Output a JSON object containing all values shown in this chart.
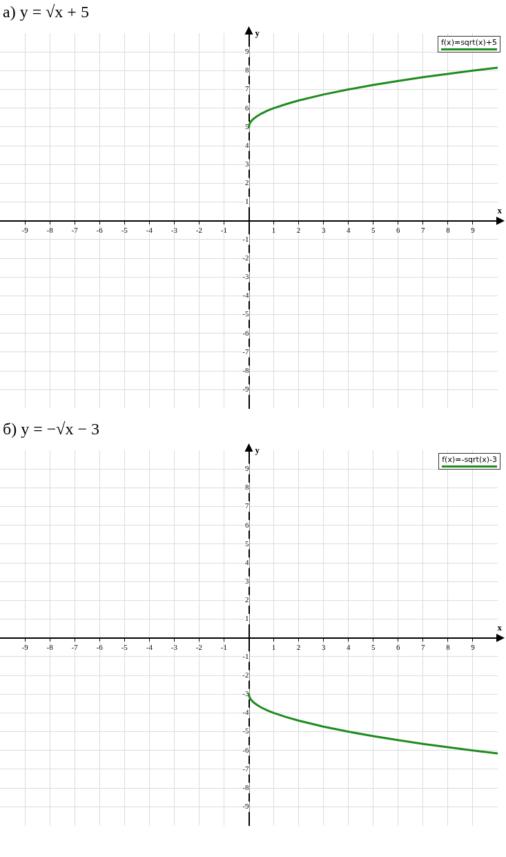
{
  "chart_data": [
    {
      "type": "line",
      "title": "а) y = √x + 5",
      "xlabel": "x",
      "ylabel": "y",
      "xlim": [
        -10,
        10
      ],
      "ylim": [
        -10,
        10
      ],
      "xticks": [
        -9,
        -8,
        -7,
        -6,
        -5,
        -4,
        -3,
        -2,
        -1,
        1,
        2,
        3,
        4,
        5,
        6,
        7,
        8,
        9
      ],
      "yticks": [
        -9,
        -8,
        -7,
        -6,
        -5,
        -4,
        -3,
        -2,
        -1,
        1,
        2,
        3,
        4,
        5,
        6,
        7,
        8,
        9
      ],
      "grid": true,
      "legend": "top right",
      "marker": "none",
      "line_style": "solid",
      "series": [
        {
          "name": "f(x)=sqrt(x)+5",
          "color": "#1e8c1e",
          "x": [
            0,
            0.02,
            0.05,
            0.1,
            0.2,
            0.35,
            0.5,
            0.75,
            1,
            1.5,
            2,
            3,
            4,
            5,
            6,
            7,
            8,
            9,
            10
          ],
          "values": [
            5,
            5.14,
            5.22,
            5.32,
            5.45,
            5.59,
            5.71,
            5.87,
            6,
            6.22,
            6.41,
            6.73,
            7,
            7.24,
            7.45,
            7.65,
            7.83,
            8,
            8.16
          ]
        }
      ]
    },
    {
      "type": "line",
      "title": "б) y = −√x − 3",
      "xlabel": "x",
      "ylabel": "y",
      "xlim": [
        -10,
        10
      ],
      "ylim": [
        -10,
        10
      ],
      "xticks": [
        -9,
        -8,
        -7,
        -6,
        -5,
        -4,
        -3,
        -2,
        -1,
        1,
        2,
        3,
        4,
        5,
        6,
        7,
        8,
        9
      ],
      "yticks": [
        -9,
        -8,
        -7,
        -6,
        -5,
        -4,
        -3,
        -2,
        -1,
        1,
        2,
        3,
        4,
        5,
        6,
        7,
        8,
        9
      ],
      "grid": true,
      "legend": "top right",
      "marker": "none",
      "line_style": "solid",
      "series": [
        {
          "name": "f(x)=-sqrt(x)-3",
          "color": "#1e8c1e",
          "x": [
            0,
            0.02,
            0.05,
            0.1,
            0.2,
            0.35,
            0.5,
            0.75,
            1,
            1.5,
            2,
            3,
            4,
            5,
            6,
            7,
            8,
            9,
            10
          ],
          "values": [
            -3,
            -3.14,
            -3.22,
            -3.32,
            -3.45,
            -3.59,
            -3.71,
            -3.87,
            -4,
            -4.22,
            -4.41,
            -4.73,
            -5,
            -5.24,
            -5.45,
            -5.65,
            -5.83,
            -6,
            -6.16
          ]
        }
      ]
    }
  ]
}
